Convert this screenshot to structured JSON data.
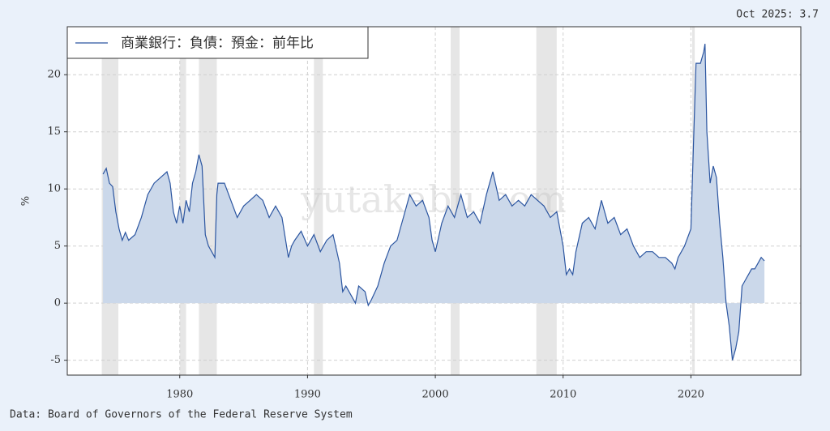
{
  "chart_data": {
    "type": "area-line",
    "annotation": "Oct 2025: 3.7",
    "source": "Data: Board of Governors of the Federal Reserve System",
    "watermark": "yutakabu.com",
    "y_label": "%",
    "legend": "upper left",
    "grid": true,
    "xlim": [
      1971.2,
      2028.6
    ],
    "ylim": [
      -6.3,
      24.2
    ],
    "xticks": [
      1980,
      1990,
      2000,
      2010,
      2020
    ],
    "yticks": [
      -5,
      0,
      5,
      10,
      15,
      20
    ],
    "shaded_periods": [
      [
        1973.9,
        1975.2
      ],
      [
        1980.0,
        1980.5
      ],
      [
        1981.5,
        1982.9
      ],
      [
        1990.5,
        1991.2
      ],
      [
        2001.2,
        2001.9
      ],
      [
        2007.9,
        2009.5
      ],
      [
        2020.1,
        2020.3
      ]
    ],
    "shade_color": "#e6e6e6",
    "x": [
      1974.0,
      1974.25,
      1974.5,
      1974.75,
      1975.0,
      1975.25,
      1975.5,
      1975.75,
      1976.0,
      1976.5,
      1977.0,
      1977.5,
      1978.0,
      1978.5,
      1979.0,
      1979.25,
      1979.5,
      1979.75,
      1980.0,
      1980.25,
      1980.5,
      1980.75,
      1981.0,
      1981.25,
      1981.5,
      1981.75,
      1982.0,
      1982.25,
      1982.5,
      1982.75,
      1982.9,
      1983.0,
      1983.5,
      1984.0,
      1984.5,
      1985.0,
      1985.5,
      1986.0,
      1986.5,
      1987.0,
      1987.5,
      1988.0,
      1988.5,
      1988.75,
      1989.0,
      1989.5,
      1990.0,
      1990.5,
      1991.0,
      1991.5,
      1992.0,
      1992.5,
      1992.75,
      1993.0,
      1993.5,
      1993.75,
      1994.0,
      1994.5,
      1994.75,
      1995.0,
      1995.5,
      1996.0,
      1996.5,
      1997.0,
      1997.5,
      1998.0,
      1998.5,
      1999.0,
      1999.5,
      1999.75,
      2000.0,
      2000.5,
      2001.0,
      2001.5,
      2002.0,
      2002.5,
      2003.0,
      2003.5,
      2004.0,
      2004.5,
      2005.0,
      2005.5,
      2006.0,
      2006.5,
      2007.0,
      2007.5,
      2008.0,
      2008.5,
      2009.0,
      2009.5,
      2010.0,
      2010.25,
      2010.5,
      2010.75,
      2011.0,
      2011.5,
      2012.0,
      2012.5,
      2013.0,
      2013.5,
      2014.0,
      2014.5,
      2015.0,
      2015.5,
      2016.0,
      2016.5,
      2017.0,
      2017.5,
      2018.0,
      2018.5,
      2018.75,
      2019.0,
      2019.5,
      2020.0,
      2020.2,
      2020.4,
      2020.75,
      2021.0,
      2021.1,
      2021.25,
      2021.5,
      2021.75,
      2022.0,
      2022.25,
      2022.5,
      2022.75,
      2023.0,
      2023.25,
      2023.5,
      2023.75,
      2024.0,
      2024.25,
      2024.5,
      2024.75,
      2025.0,
      2025.25,
      2025.5,
      2025.75
    ],
    "series": [
      {
        "name": "商業銀行：負債：預金：前年比",
        "color": "#2b55a0",
        "fill": "#cbd8ea",
        "values": [
          11.3,
          11.8,
          10.5,
          10.2,
          8.0,
          6.5,
          5.5,
          6.2,
          5.5,
          6.0,
          7.5,
          9.5,
          10.5,
          11.0,
          11.5,
          10.5,
          8.0,
          7.0,
          8.5,
          7.0,
          9.0,
          8.0,
          10.5,
          11.5,
          13.0,
          12.0,
          6.0,
          5.0,
          4.5,
          4.0,
          9.5,
          10.5,
          10.5,
          9.0,
          7.5,
          8.5,
          9.0,
          9.5,
          9.0,
          7.5,
          8.5,
          7.5,
          4.0,
          5.0,
          5.5,
          6.3,
          5.0,
          6.0,
          4.5,
          5.5,
          6.0,
          3.5,
          1.0,
          1.5,
          0.5,
          0.0,
          1.5,
          1.0,
          -0.2,
          0.3,
          1.5,
          3.5,
          5.0,
          5.5,
          7.5,
          9.5,
          8.5,
          9.0,
          7.5,
          5.5,
          4.5,
          7.0,
          8.5,
          7.5,
          9.5,
          7.5,
          8.0,
          7.0,
          9.5,
          11.5,
          9.0,
          9.5,
          8.5,
          9.0,
          8.5,
          9.5,
          9.0,
          8.5,
          7.5,
          8.0,
          5.0,
          2.5,
          3.0,
          2.5,
          4.5,
          7.0,
          7.5,
          6.5,
          9.0,
          7.0,
          7.5,
          6.0,
          6.5,
          5.0,
          4.0,
          4.5,
          4.5,
          4.0,
          4.0,
          3.5,
          3.0,
          4.0,
          5.0,
          6.5,
          14.0,
          21.0,
          21.0,
          22.0,
          22.7,
          15.0,
          10.5,
          12.0,
          11.0,
          7.0,
          4.0,
          0.0,
          -2.0,
          -5.0,
          -4.0,
          -2.5,
          1.5,
          2.0,
          2.5,
          3.0,
          3.0,
          3.5,
          4.0,
          3.7
        ]
      }
    ]
  }
}
